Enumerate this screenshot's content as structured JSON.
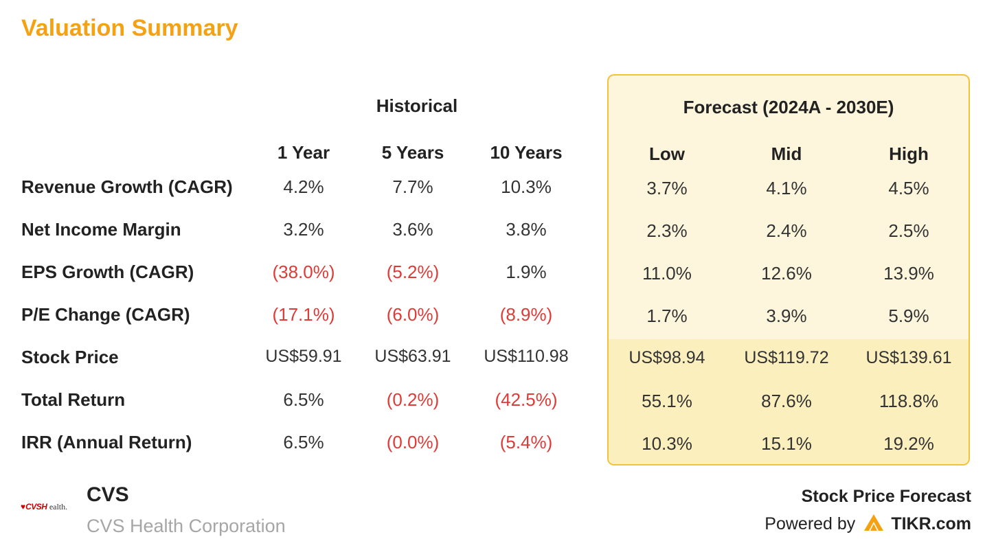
{
  "title": "Valuation Summary",
  "historical_header": "Historical",
  "forecast_header": "Forecast (2024A - 2030E)",
  "historical_columns": [
    "1 Year",
    "5 Years",
    "10 Years"
  ],
  "forecast_columns": [
    "Low",
    "Mid",
    "High"
  ],
  "rows": [
    {
      "label": "Revenue Growth (CAGR)",
      "historical": [
        "4.2%",
        "7.7%",
        "10.3%"
      ],
      "forecast": [
        "3.7%",
        "4.1%",
        "4.5%"
      ]
    },
    {
      "label": "Net Income Margin",
      "historical": [
        "3.2%",
        "3.6%",
        "3.8%"
      ],
      "forecast": [
        "2.3%",
        "2.4%",
        "2.5%"
      ]
    },
    {
      "label": "EPS Growth (CAGR)",
      "historical": [
        "(38.0%)",
        "(5.2%)",
        "1.9%"
      ],
      "forecast": [
        "11.0%",
        "12.6%",
        "13.9%"
      ]
    },
    {
      "label": "P/E Change (CAGR)",
      "historical": [
        "(17.1%)",
        "(6.0%)",
        "(8.9%)"
      ],
      "forecast": [
        "1.7%",
        "3.9%",
        "5.9%"
      ]
    },
    {
      "label": "Stock Price",
      "historical": [
        "US$59.91",
        "US$63.91",
        "US$110.98"
      ],
      "forecast": [
        "US$98.94",
        "US$119.72",
        "US$139.61"
      ]
    },
    {
      "label": "Total Return",
      "historical": [
        "6.5%",
        "(0.2%)",
        "(42.5%)"
      ],
      "forecast": [
        "55.1%",
        "87.6%",
        "118.8%"
      ]
    },
    {
      "label": "IRR (Annual Return)",
      "historical": [
        "6.5%",
        "(0.0%)",
        "(5.4%)"
      ],
      "forecast": [
        "10.3%",
        "15.1%",
        "19.2%"
      ]
    }
  ],
  "company": {
    "logo_text": "CVSHealth.",
    "ticker": "CVS",
    "name": "CVS Health Corporation"
  },
  "branding": {
    "title": "Stock Price Forecast",
    "powered_by": "Powered by",
    "site": "TIKR.com"
  },
  "colors": {
    "title": "#f4a213",
    "negative": "#dd3b37",
    "forecast_bg": "#fdf6dc",
    "forecast_bg_lower": "#fcefbe",
    "forecast_border": "#f2c33a",
    "logo_red": "#cc0000"
  },
  "icons": {
    "logo": "cvs-heart-logo",
    "tikr": "tikr-logo-icon"
  }
}
